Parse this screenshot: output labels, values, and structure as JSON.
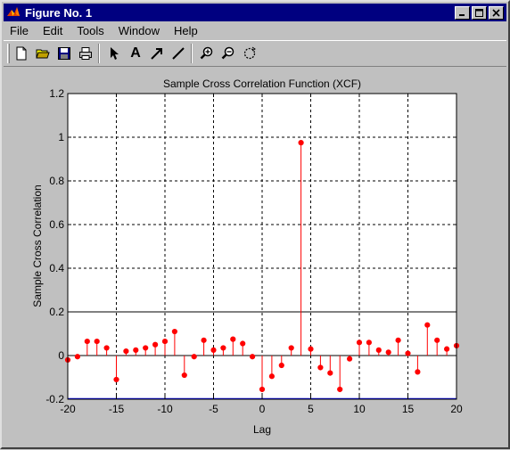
{
  "window": {
    "title": "Figure No. 1"
  },
  "menu": {
    "items": [
      {
        "label": "File"
      },
      {
        "label": "Edit"
      },
      {
        "label": "Tools"
      },
      {
        "label": "Window"
      },
      {
        "label": "Help"
      }
    ]
  },
  "toolbar": {
    "icons": [
      "new-file-icon",
      "open-folder-icon",
      "save-icon",
      "print-icon",
      "arrow-pointer-icon",
      "text-tool-icon",
      "arrow-tool-icon",
      "line-tool-icon",
      "zoom-in-icon",
      "zoom-out-icon",
      "rotate-icon"
    ],
    "text_tool_glyph": "A"
  },
  "colors": {
    "titlebar": "#000080",
    "stem": "#ff0000",
    "bound_upper": "#000000",
    "bound_lower": "#0000ff"
  },
  "chart_data": {
    "type": "stem",
    "title": "Sample Cross Correlation Function (XCF)",
    "xlabel": "Lag",
    "ylabel": "Sample Cross Correlation",
    "xlim": [
      -20,
      20
    ],
    "ylim": [
      -0.2,
      1.2
    ],
    "xticks": [
      -20,
      -15,
      -10,
      -5,
      0,
      5,
      10,
      15,
      20
    ],
    "yticks": [
      -0.2,
      0,
      0.2,
      0.4,
      0.6,
      0.8,
      1,
      1.2
    ],
    "xtick_labels": [
      "-20",
      "-15",
      "-10",
      "-5",
      "0",
      "5",
      "10",
      "15",
      "20"
    ],
    "ytick_labels": [
      "-0.2",
      "0",
      "0.2",
      "0.4",
      "0.6",
      "0.8",
      "1",
      "1.2"
    ],
    "grid": true,
    "confidence_bounds": [
      0.2,
      -0.2
    ],
    "lags": [
      -20,
      -19,
      -18,
      -17,
      -16,
      -15,
      -14,
      -13,
      -12,
      -11,
      -10,
      -9,
      -8,
      -7,
      -6,
      -5,
      -4,
      -3,
      -2,
      -1,
      0,
      1,
      2,
      3,
      4,
      5,
      6,
      7,
      8,
      9,
      10,
      11,
      12,
      13,
      14,
      15,
      16,
      17,
      18,
      19,
      20
    ],
    "values": [
      -0.02,
      -0.005,
      0.065,
      0.065,
      0.035,
      -0.11,
      0.02,
      0.025,
      0.035,
      0.05,
      0.065,
      0.11,
      -0.09,
      -0.005,
      0.07,
      0.025,
      0.035,
      0.075,
      0.055,
      -0.005,
      -0.155,
      -0.095,
      -0.045,
      0.035,
      0.975,
      0.03,
      -0.055,
      -0.08,
      -0.155,
      -0.015,
      0.06,
      0.06,
      0.025,
      0.015,
      0.07,
      0.01,
      -0.075,
      0.14,
      0.07,
      0.03,
      0.045
    ]
  }
}
